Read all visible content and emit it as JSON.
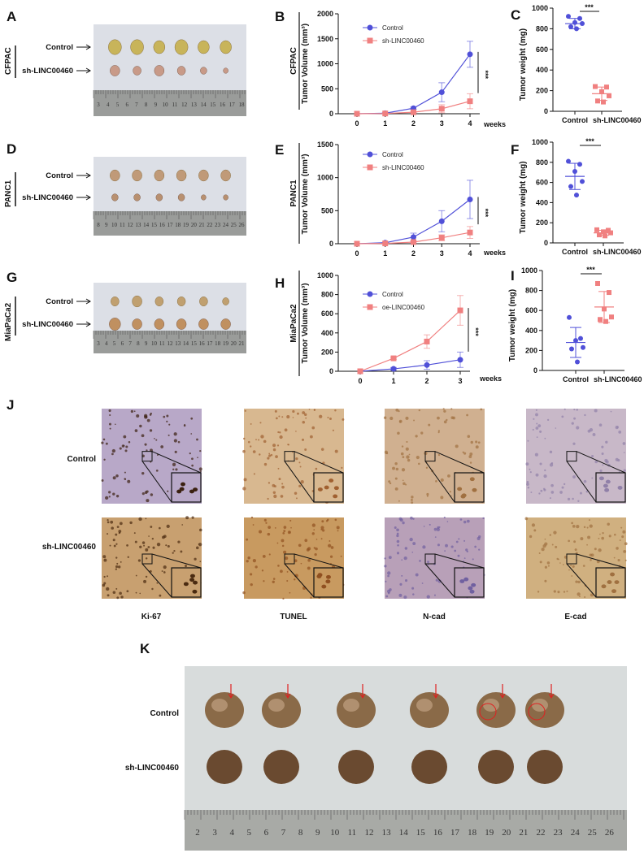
{
  "panels": {
    "A": {
      "letter": "A",
      "cell_line": "CFPAC",
      "rows": [
        "Control",
        "sh-LINC00460"
      ],
      "ruler": [
        "3",
        "4",
        "5",
        "6",
        "7",
        "8",
        "9",
        "10",
        "11",
        "12",
        "13",
        "14",
        "15",
        "16",
        "17",
        "18"
      ]
    },
    "D": {
      "letter": "D",
      "cell_line": "PANC1",
      "rows": [
        "Control",
        "sh-LINC00460"
      ],
      "ruler": [
        "8",
        "9",
        "10",
        "11",
        "12",
        "13",
        "14",
        "15",
        "16",
        "17",
        "18",
        "19",
        "20",
        "21",
        "22",
        "23",
        "24",
        "25",
        "26"
      ]
    },
    "G": {
      "letter": "G",
      "cell_line": "MiaPaCa2",
      "rows": [
        "Control",
        "sh-LINC00460"
      ],
      "ruler": [
        "3",
        "4",
        "5",
        "6",
        "7",
        "8",
        "9",
        "10",
        "11",
        "12",
        "13",
        "14",
        "15",
        "16",
        "17",
        "18",
        "19",
        "20",
        "21"
      ]
    },
    "J": {
      "letter": "J",
      "rows": [
        "Control",
        "sh-LINC00460"
      ],
      "columns": [
        "Ki-67",
        "TUNEL",
        "N-cad",
        "E-cad"
      ]
    },
    "K": {
      "letter": "K",
      "rows": [
        "Control",
        "sh-LINC00460"
      ],
      "ruler": [
        "2",
        "3",
        "4",
        "5",
        "6",
        "7",
        "8",
        "9",
        "10",
        "11",
        "12",
        "13",
        "14",
        "15",
        "16",
        "17",
        "18",
        "19",
        "20",
        "21",
        "22",
        "23",
        "24",
        "25",
        "26"
      ]
    }
  },
  "colors": {
    "control": "#5050d8",
    "treated": "#f08080"
  },
  "chart_data": [
    {
      "id": "B",
      "letter": "B",
      "type": "line",
      "side_label": "CFPAC",
      "ylabel": "Tumor Volume (mm³)",
      "xlabel": "weeks",
      "x": [
        0,
        1,
        2,
        3,
        4
      ],
      "ylim": [
        0,
        2000
      ],
      "yticks": [
        0,
        500,
        1000,
        1500,
        2000
      ],
      "legend": "top-left",
      "significance": "***",
      "series": [
        {
          "name": "Control",
          "marker": "circle",
          "color": "#5050d8",
          "values": [
            0,
            10,
            110,
            430,
            1190
          ],
          "error": [
            0,
            10,
            25,
            190,
            260
          ]
        },
        {
          "name": "sh-LINC00460",
          "marker": "square",
          "color": "#f08080",
          "values": [
            0,
            5,
            30,
            100,
            250
          ],
          "error": [
            0,
            5,
            10,
            80,
            150
          ]
        }
      ]
    },
    {
      "id": "C",
      "letter": "C",
      "type": "scatter",
      "ylabel": "Tumor weight (mg)",
      "categories": [
        "Control",
        "sh-LINC00460"
      ],
      "ylim": [
        0,
        1000
      ],
      "yticks": [
        0,
        200,
        400,
        600,
        800,
        1000
      ],
      "significance": "***",
      "groups": [
        {
          "name": "Control",
          "marker": "circle",
          "color": "#5050d8",
          "points": [
            920,
            900,
            860,
            850,
            820,
            800
          ],
          "mean": 850,
          "sd": 50
        },
        {
          "name": "sh-LINC00460",
          "marker": "square",
          "color": "#f08080",
          "points": [
            240,
            235,
            190,
            150,
            100,
            90
          ],
          "mean": 170,
          "sd": 65
        }
      ]
    },
    {
      "id": "E",
      "letter": "E",
      "type": "line",
      "side_label": "PANC1",
      "ylabel": "Tumor Volume (mm³)",
      "xlabel": "weeks",
      "x": [
        0,
        1,
        2,
        3,
        4
      ],
      "ylim": [
        0,
        1500
      ],
      "yticks": [
        0,
        500,
        1000,
        1500
      ],
      "legend": "top-left",
      "significance": "***",
      "series": [
        {
          "name": "Control",
          "marker": "circle",
          "color": "#5050d8",
          "values": [
            0,
            15,
            100,
            340,
            670
          ],
          "error": [
            0,
            5,
            60,
            160,
            290
          ]
        },
        {
          "name": "sh-LINC00460",
          "marker": "square",
          "color": "#f08080",
          "values": [
            0,
            5,
            25,
            90,
            170
          ],
          "error": [
            0,
            3,
            10,
            45,
            90
          ]
        }
      ]
    },
    {
      "id": "F",
      "letter": "F",
      "type": "scatter",
      "ylabel": "Tumor weight (mg)",
      "categories": [
        "Control",
        "sh-LINC00460"
      ],
      "ylim": [
        0,
        1000
      ],
      "yticks": [
        0,
        200,
        400,
        600,
        800,
        1000
      ],
      "significance": "***",
      "groups": [
        {
          "name": "Control",
          "marker": "circle",
          "color": "#5050d8",
          "points": [
            810,
            780,
            710,
            610,
            560,
            475
          ],
          "mean": 660,
          "sd": 130
        },
        {
          "name": "sh-LINC00460",
          "marker": "square",
          "color": "#f08080",
          "points": [
            130,
            125,
            110,
            100,
            80,
            70
          ],
          "mean": 100,
          "sd": 25
        }
      ]
    },
    {
      "id": "H",
      "letter": "H",
      "type": "line",
      "side_label": "MiaPaCa2",
      "ylabel": "Tumor Volume (mm³)",
      "xlabel": "weeks",
      "x": [
        0,
        1,
        2,
        3
      ],
      "ylim": [
        0,
        1000
      ],
      "yticks": [
        0,
        200,
        400,
        600,
        800,
        1000
      ],
      "legend": "top-left",
      "significance": "***",
      "series": [
        {
          "name": "Control",
          "marker": "circle",
          "color": "#5050d8",
          "values": [
            0,
            25,
            65,
            120
          ],
          "error": [
            0,
            15,
            45,
            80
          ]
        },
        {
          "name": "oe-LINC00460",
          "marker": "square",
          "color": "#f08080",
          "values": [
            0,
            135,
            310,
            635
          ],
          "error": [
            0,
            10,
            70,
            155
          ]
        }
      ]
    },
    {
      "id": "I",
      "letter": "I",
      "type": "scatter",
      "ylabel": "Tumor weight (mg)",
      "categories": [
        "Control",
        "sh-LINC00460"
      ],
      "ylim": [
        0,
        1000
      ],
      "yticks": [
        0,
        200,
        400,
        600,
        800,
        1000
      ],
      "significance": "***",
      "groups": [
        {
          "name": "Control",
          "marker": "circle",
          "color": "#5050d8",
          "points": [
            530,
            320,
            300,
            230,
            215,
            85
          ],
          "mean": 280,
          "sd": 150
        },
        {
          "name": "sh-LINC00460",
          "marker": "square",
          "color": "#f08080",
          "points": [
            870,
            780,
            615,
            535,
            510,
            490
          ],
          "mean": 635,
          "sd": 155
        }
      ]
    }
  ]
}
